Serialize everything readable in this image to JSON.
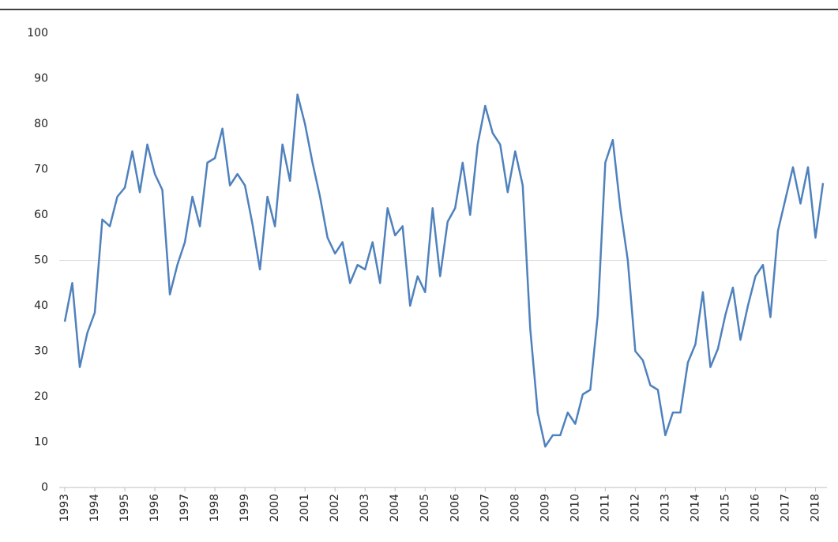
{
  "chart_data": {
    "type": "line",
    "categories": [
      "1993",
      null,
      null,
      null,
      "1994",
      null,
      null,
      null,
      "1995",
      null,
      null,
      null,
      "1996",
      null,
      null,
      null,
      "1997",
      null,
      null,
      null,
      "1998",
      null,
      null,
      null,
      "1999",
      null,
      null,
      null,
      "2000",
      null,
      null,
      null,
      "2001",
      null,
      null,
      null,
      "2002",
      null,
      null,
      null,
      "2003",
      null,
      null,
      null,
      "2004",
      null,
      null,
      null,
      "2005",
      null,
      null,
      null,
      "2006",
      null,
      null,
      null,
      "2007",
      null,
      null,
      null,
      "2008",
      null,
      null,
      null,
      "2009",
      null,
      null,
      null,
      "2010",
      null,
      null,
      null,
      "2011",
      null,
      null,
      null,
      "2012",
      null,
      null,
      null,
      "2013",
      null,
      null,
      null,
      "2014",
      null,
      null,
      null,
      "2015",
      null,
      null,
      null,
      "2016",
      null,
      null,
      null,
      "2017",
      null,
      null,
      null,
      "2018",
      null
    ],
    "values": [
      36.5,
      45,
      26.5,
      34,
      38.5,
      59,
      57.5,
      64,
      66,
      74,
      65,
      75.5,
      69,
      65.5,
      42.5,
      49,
      54,
      64,
      57.5,
      71.5,
      72.5,
      79,
      66.5,
      69,
      66.5,
      58,
      48,
      64,
      57.5,
      75.5,
      67.5,
      86.5,
      80,
      71.5,
      64,
      55,
      51.5,
      54,
      45,
      49,
      48,
      54,
      45,
      61.5,
      55.5,
      57.5,
      40,
      46.5,
      43,
      61.5,
      46.5,
      58.5,
      61.5,
      71.5,
      60,
      75.5,
      84,
      78,
      75.5,
      65,
      74,
      66.5,
      35,
      16.5,
      9,
      11.5,
      11.5,
      16.5,
      14,
      20.5,
      21.5,
      38,
      71.5,
      76.5,
      61.5,
      50,
      30,
      28,
      22.5,
      21.5,
      11.5,
      16.5,
      16.5,
      27.5,
      31.5,
      43,
      26.5,
      30.5,
      38,
      44,
      32.5,
      40,
      46.5,
      49,
      37.5,
      56.5,
      63.5,
      70.5,
      62.5,
      70.5,
      55,
      67
    ],
    "color": "#4f81bd",
    "ylim": [
      0,
      100
    ],
    "yticks": [
      0,
      10,
      20,
      30,
      40,
      50,
      60,
      70,
      80,
      90,
      100
    ],
    "reference_line": 50
  }
}
